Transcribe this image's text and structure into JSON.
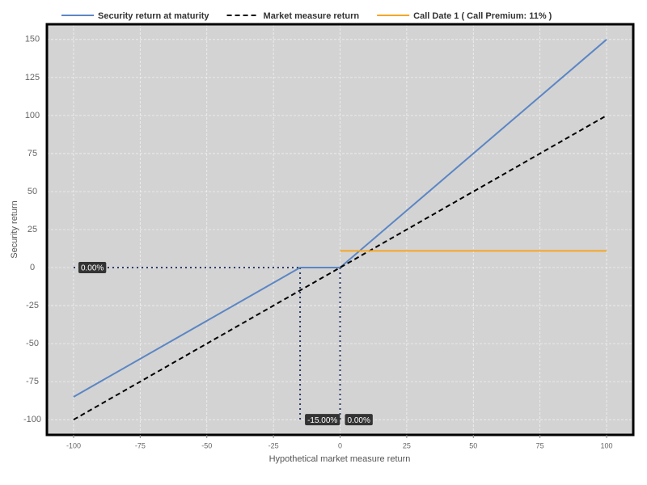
{
  "chart_data": {
    "type": "line",
    "x_label": "Hypothetical market measure return",
    "y_label": "Security return",
    "xlim": [
      -110,
      110
    ],
    "xticks": [
      -100,
      -75,
      -50,
      -25,
      0,
      25,
      50,
      75,
      100
    ],
    "ylim": [
      -110,
      160
    ],
    "yticks": [
      -100,
      -75,
      -50,
      -25,
      0,
      25,
      50,
      75,
      100,
      125,
      150
    ],
    "grid": true,
    "legend": "top",
    "series": [
      {
        "name": "Security return at maturity",
        "color": "#5b86c5",
        "dashed": false,
        "x": [
          -100,
          -15,
          0,
          100
        ],
        "values": [
          -85,
          0,
          0,
          150
        ]
      },
      {
        "name": "Market measure return",
        "color": "#000000",
        "dashed": true,
        "x": [
          -100,
          100
        ],
        "values": [
          -100,
          100
        ]
      },
      {
        "name": "Call Date 1 ( Call Premium: 11% )",
        "color": "#f5a623",
        "dashed": false,
        "x": [
          0,
          100
        ],
        "values": [
          11,
          11
        ]
      }
    ],
    "annotations": [
      {
        "label": "0.00%",
        "x": -100,
        "y": 0
      },
      {
        "label": "-15.00%",
        "x": -15,
        "y": -100
      },
      {
        "label": "0.00%",
        "x": 0,
        "y": -100
      }
    ]
  }
}
